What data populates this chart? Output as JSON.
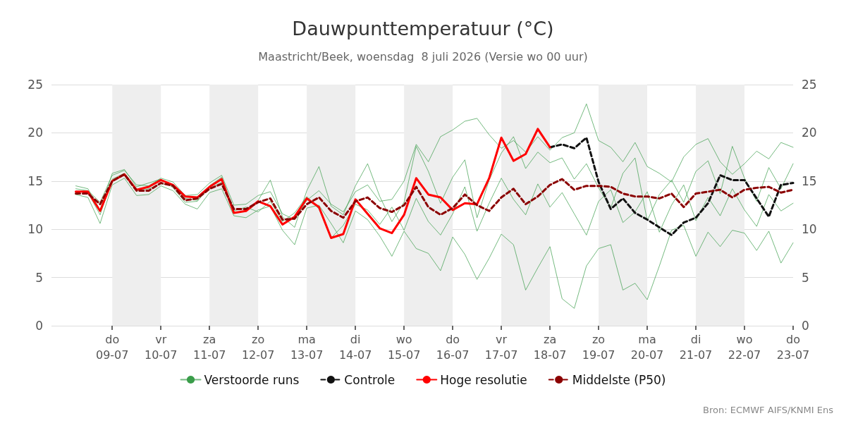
{
  "chart_data": {
    "type": "line",
    "title": "Dauwpunttemperatuur (°C)",
    "subtitle": "Maastricht/Beek, woensdag  8 juli 2026 (Versie wo 00 uur)",
    "annotations": [
      "Bron: ECMWF AIFS/KNMI Ens"
    ],
    "x": [
      "2026-07-08T06:00",
      "2026-07-08T12:00",
      "2026-07-08T18:00",
      "2026-07-09T00:00",
      "2026-07-09T06:00",
      "2026-07-09T12:00",
      "2026-07-09T18:00",
      "2026-07-10T00:00",
      "2026-07-10T06:00",
      "2026-07-10T12:00",
      "2026-07-10T18:00",
      "2026-07-11T00:00",
      "2026-07-11T06:00",
      "2026-07-11T12:00",
      "2026-07-11T18:00",
      "2026-07-12T00:00",
      "2026-07-12T06:00",
      "2026-07-12T12:00",
      "2026-07-12T18:00",
      "2026-07-13T00:00",
      "2026-07-13T06:00",
      "2026-07-13T12:00",
      "2026-07-13T18:00",
      "2026-07-14T00:00",
      "2026-07-14T06:00",
      "2026-07-14T12:00",
      "2026-07-14T18:00",
      "2026-07-15T00:00",
      "2026-07-15T06:00",
      "2026-07-15T12:00",
      "2026-07-15T18:00",
      "2026-07-16T00:00",
      "2026-07-16T06:00",
      "2026-07-16T12:00",
      "2026-07-16T18:00",
      "2026-07-17T00:00",
      "2026-07-17T06:00",
      "2026-07-17T12:00",
      "2026-07-17T18:00",
      "2026-07-18T00:00",
      "2026-07-18T06:00",
      "2026-07-18T12:00",
      "2026-07-18T18:00",
      "2026-07-19T00:00",
      "2026-07-19T06:00",
      "2026-07-19T12:00",
      "2026-07-19T18:00",
      "2026-07-20T00:00",
      "2026-07-20T06:00",
      "2026-07-20T12:00",
      "2026-07-20T18:00",
      "2026-07-21T00:00",
      "2026-07-21T06:00",
      "2026-07-21T12:00",
      "2026-07-21T18:00",
      "2026-07-22T00:00",
      "2026-07-22T06:00",
      "2026-07-22T12:00",
      "2026-07-22T18:00",
      "2026-07-23T00:00"
    ],
    "series": [
      {
        "name": "Verstoorde runs",
        "color": "#3a9d4a",
        "line_style": "solid",
        "values": [
          14.2,
          14.0,
          12.8,
          15.6,
          16.1,
          14.6,
          14.5,
          15.3,
          14.9,
          13.5,
          13.6,
          14.8,
          15.6,
          12.5,
          12.6,
          13.5,
          13.9,
          11.6,
          11.0,
          13.0,
          14.0,
          12.6,
          11.8,
          13.9,
          14.6,
          12.9,
          13.1,
          15.0,
          18.8,
          17.0,
          19.6,
          20.3,
          21.2,
          21.5,
          19.8,
          18.4,
          19.2,
          18.0,
          19.6,
          18.2,
          19.5,
          20.0,
          23.0,
          19.2,
          18.5,
          17.0,
          19.0,
          16.5,
          15.8,
          14.9,
          17.5,
          18.8,
          19.4,
          17.0,
          15.7,
          16.8,
          18.1,
          17.3,
          19.0,
          18.5
        ]
      },
      {
        "color": "#3a9d4a",
        "line_style": "solid",
        "values": [
          13.6,
          13.3,
          10.6,
          14.6,
          15.3,
          13.5,
          13.6,
          14.5,
          14.0,
          12.6,
          12.1,
          13.8,
          14.2,
          11.4,
          11.2,
          12.0,
          12.4,
          9.9,
          8.4,
          12.2,
          12.5,
          10.6,
          8.6,
          11.9,
          11.0,
          9.3,
          7.2,
          9.8,
          8.0,
          7.5,
          5.7,
          9.2,
          7.4,
          4.8,
          7.0,
          9.5,
          8.4,
          3.7,
          6.0,
          8.2,
          2.8,
          1.8,
          6.2,
          8.0,
          8.4,
          3.7,
          4.4,
          2.7,
          6.2,
          9.9,
          10.4,
          7.2,
          9.7,
          8.2,
          9.9,
          9.6,
          7.8,
          9.8,
          6.5,
          8.6
        ]
      },
      {
        "color": "#3a9d4a",
        "line_style": "solid",
        "values": [
          14.5,
          14.2,
          12.0,
          15.8,
          16.2,
          14.4,
          14.8,
          15.2,
          14.3,
          12.8,
          12.9,
          14.5,
          15.4,
          12.0,
          null,
          13.0,
          15.1,
          11.3,
          10.2,
          14.0,
          16.5,
          12.4,
          11.5,
          14.5,
          16.8,
          13.4,
          10.8,
          12.8,
          18.6,
          16.0,
          12.7,
          15.4,
          17.2,
          11.2,
          15.1,
          17.9,
          19.6,
          16.3,
          18.0,
          16.9,
          17.4,
          15.2,
          16.8,
          14.3,
          12.2,
          15.8,
          17.4,
          10.9,
          13.6,
          15.1,
          12.8,
          16.0,
          17.1,
          13.7,
          18.6,
          15.3,
          12.9,
          16.4,
          14.2,
          16.8
        ]
      },
      {
        "color": "#3a9d4a",
        "line_style": "solid",
        "values": [
          13.9,
          13.8,
          11.5,
          15.2,
          15.8,
          14.0,
          14.2,
          14.7,
          14.6,
          13.2,
          13.0,
          14.2,
          14.9,
          11.9,
          12.3,
          11.8,
          12.9,
          10.8,
          11.7,
          13.4,
          12.1,
          9.1,
          10.4,
          12.6,
          12.0,
          10.5,
          12.3,
          9.9,
          13.2,
          10.8,
          9.4,
          11.6,
          14.4,
          9.8,
          12.7,
          15.3,
          13.1,
          11.5,
          14.7,
          12.3,
          13.8,
          11.6,
          9.4,
          12.9,
          14.1,
          10.7,
          11.8,
          13.9,
          9.7,
          12.5,
          14.6,
          10.9,
          13.3,
          11.4,
          14.2,
          12.0,
          10.3,
          13.6,
          11.9,
          12.7
        ]
      },
      {
        "name": "Controle",
        "color": "#111111",
        "line_style": "dashed",
        "values": [
          null,
          null,
          null,
          null,
          null,
          null,
          null,
          null,
          null,
          null,
          null,
          null,
          null,
          null,
          null,
          null,
          null,
          null,
          null,
          null,
          null,
          null,
          null,
          null,
          null,
          null,
          null,
          null,
          null,
          null,
          null,
          null,
          null,
          null,
          null,
          null,
          null,
          null,
          null,
          18.5,
          18.8,
          18.4,
          19.5,
          14.9,
          12.1,
          13.2,
          11.7,
          11.0,
          10.2,
          9.4,
          10.7,
          11.2,
          12.7,
          15.6,
          15.1,
          15.1,
          13.2,
          11.3,
          14.6,
          14.8
        ]
      },
      {
        "name": "Hoge resolutie",
        "color": "#ff0000",
        "line_style": "solid",
        "values": [
          13.9,
          13.9,
          11.9,
          15.0,
          15.7,
          14.1,
          14.4,
          15.1,
          14.6,
          13.4,
          13.3,
          14.4,
          15.2,
          11.7,
          11.9,
          12.9,
          12.4,
          10.5,
          11.3,
          13.2,
          12.3,
          9.1,
          9.5,
          13.1,
          11.6,
          10.1,
          9.6,
          11.5,
          15.3,
          13.6,
          13.3,
          12.0,
          12.7,
          12.6,
          15.3,
          19.5,
          17.1,
          17.8,
          20.4,
          18.5,
          null,
          null,
          null,
          null,
          null,
          null,
          null,
          null,
          null,
          null,
          null,
          null,
          null,
          null,
          null,
          null,
          null,
          null,
          null,
          null
        ]
      },
      {
        "name": "Middelste (P50)",
        "color": "#8b0000",
        "line_style": "dashed",
        "values": [
          13.7,
          13.7,
          12.6,
          15.0,
          15.7,
          14.0,
          14.0,
          14.8,
          14.5,
          13.0,
          13.2,
          14.2,
          14.7,
          12.1,
          12.1,
          12.8,
          13.2,
          11.0,
          11.1,
          12.6,
          13.3,
          11.9,
          11.2,
          12.9,
          13.3,
          12.2,
          11.8,
          12.5,
          14.4,
          12.3,
          11.5,
          12.2,
          13.6,
          12.5,
          11.9,
          13.3,
          14.2,
          12.6,
          13.4,
          14.6,
          15.2,
          14.1,
          14.5,
          14.5,
          14.4,
          13.7,
          13.4,
          13.4,
          13.2,
          13.7,
          12.3,
          13.7,
          13.9,
          14.1,
          13.3,
          14.1,
          14.3,
          14.4,
          13.8,
          14.1
        ]
      }
    ],
    "xlim": [
      "2026-07-07T18:00",
      "2026-07-23T00:00"
    ],
    "xticks": [
      {
        "value": "2026-07-09T00:00",
        "label": "do\n09-07"
      },
      {
        "value": "2026-07-10T00:00",
        "label": "vr\n10-07"
      },
      {
        "value": "2026-07-11T00:00",
        "label": "za\n11-07"
      },
      {
        "value": "2026-07-12T00:00",
        "label": "zo\n12-07"
      },
      {
        "value": "2026-07-13T00:00",
        "label": "ma\n13-07"
      },
      {
        "value": "2026-07-14T00:00",
        "label": "di\n14-07"
      },
      {
        "value": "2026-07-15T00:00",
        "label": "wo\n15-07"
      },
      {
        "value": "2026-07-16T00:00",
        "label": "do\n16-07"
      },
      {
        "value": "2026-07-17T00:00",
        "label": "vr\n17-07"
      },
      {
        "value": "2026-07-18T00:00",
        "label": "za\n18-07"
      },
      {
        "value": "2026-07-19T00:00",
        "label": "zo\n19-07"
      },
      {
        "value": "2026-07-20T00:00",
        "label": "ma\n20-07"
      },
      {
        "value": "2026-07-21T00:00",
        "label": "di\n21-07"
      },
      {
        "value": "2026-07-22T00:00",
        "label": "wo\n22-07"
      },
      {
        "value": "2026-07-23T00:00",
        "label": "do\n23-07"
      }
    ],
    "ylim": [
      0,
      25
    ],
    "yticks": [
      0,
      5,
      10,
      15,
      20,
      25
    ],
    "y2lim": [
      0,
      25
    ],
    "y2ticks": [
      0,
      5,
      10,
      15,
      20,
      25
    ],
    "bands": [
      {
        "axis": "x",
        "from": "2026-07-09T00:00",
        "to": "2026-07-10T00:00",
        "color": "#eeeeee"
      },
      {
        "axis": "x",
        "from": "2026-07-11T00:00",
        "to": "2026-07-12T00:00",
        "color": "#eeeeee"
      },
      {
        "axis": "x",
        "from": "2026-07-13T00:00",
        "to": "2026-07-14T00:00",
        "color": "#eeeeee"
      },
      {
        "axis": "x",
        "from": "2026-07-15T00:00",
        "to": "2026-07-16T00:00",
        "color": "#eeeeee"
      },
      {
        "axis": "x",
        "from": "2026-07-17T00:00",
        "to": "2026-07-18T00:00",
        "color": "#eeeeee"
      },
      {
        "axis": "x",
        "from": "2026-07-19T00:00",
        "to": "2026-07-20T00:00",
        "color": "#eeeeee"
      },
      {
        "axis": "x",
        "from": "2026-07-21T00:00",
        "to": "2026-07-22T00:00",
        "color": "#eeeeee"
      }
    ],
    "grid": "y",
    "legend": "bottom",
    "marker": "none"
  }
}
